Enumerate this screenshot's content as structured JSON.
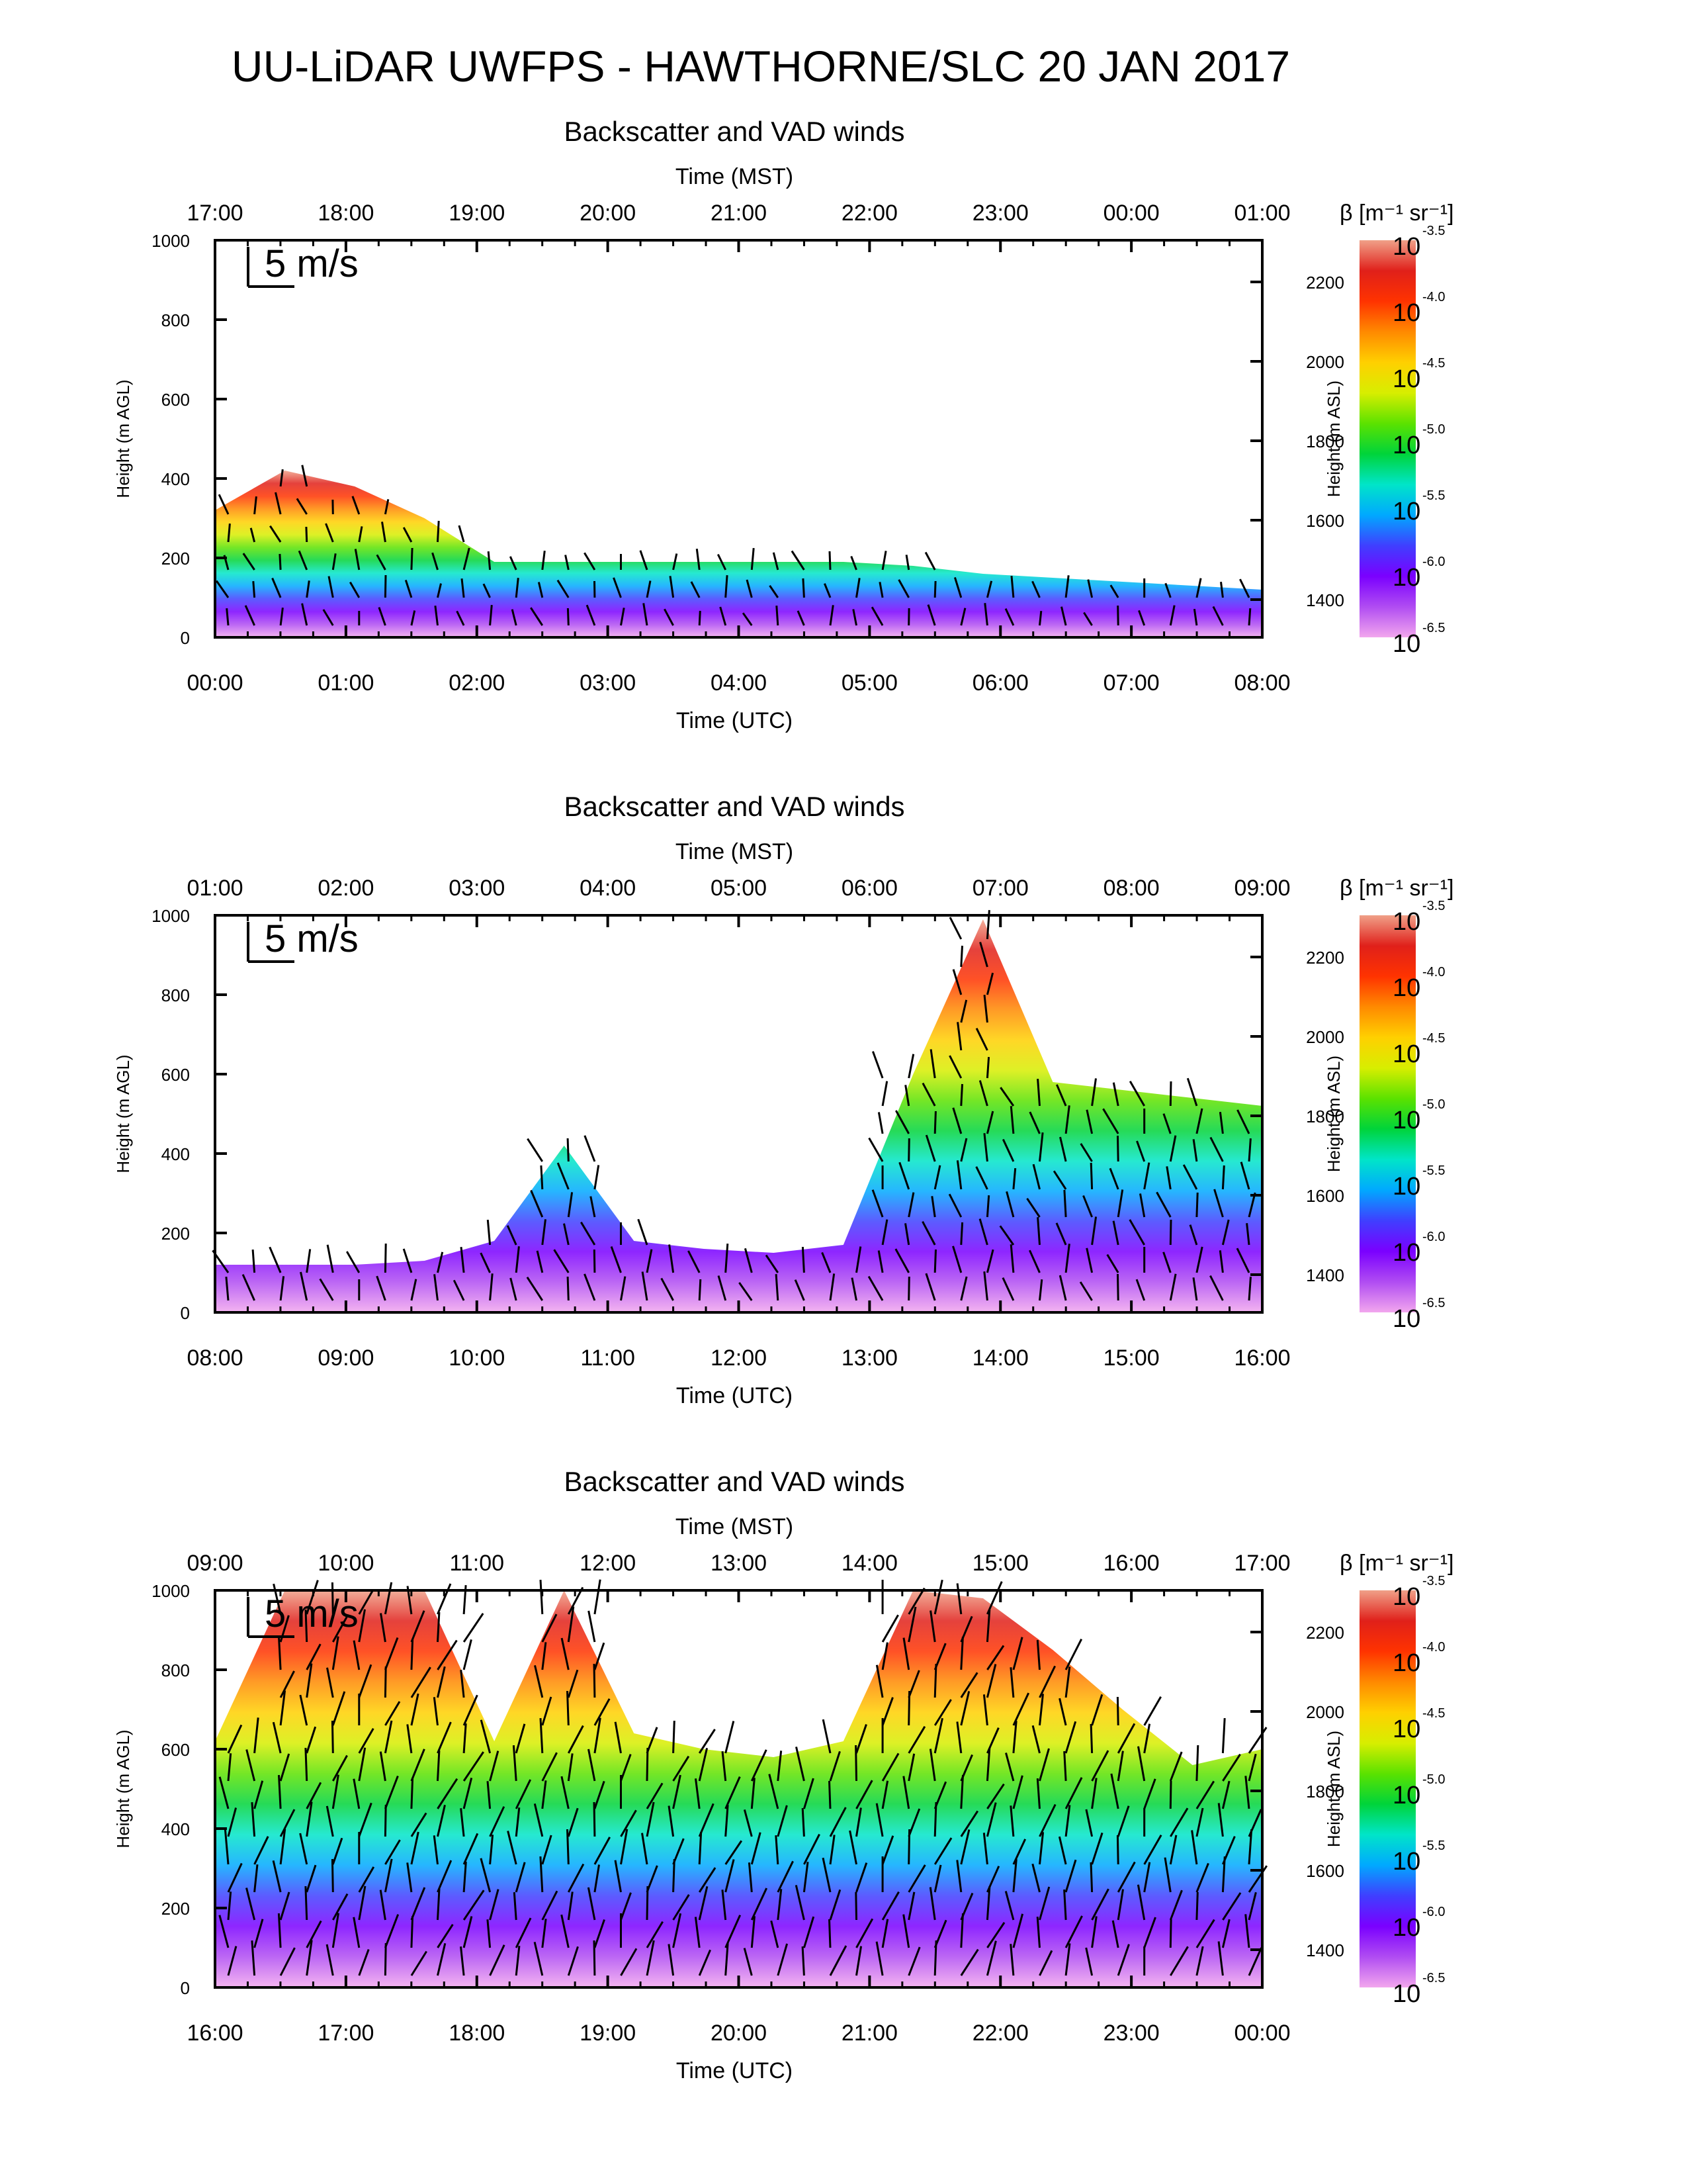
{
  "title": "UU-LiDAR UWFPS - HAWTHORNE/SLC 20 JAN 2017",
  "colors": {
    "colorbar_stops": [
      "#f2a7ee",
      "#b04cf2",
      "#7a00ff",
      "#3f3fff",
      "#00a9ff",
      "#00e5c8",
      "#00d43a",
      "#5be200",
      "#d7ee00",
      "#ffd000",
      "#ff8a00",
      "#ff3300",
      "#e0201a",
      "#f0a088"
    ],
    "arrow": "#000000"
  },
  "chart_data": [
    {
      "type": "heatmap",
      "title": "Backscatter and VAD winds",
      "top_axis_label": "Time (MST)",
      "top_ticks": [
        "17:00",
        "18:00",
        "19:00",
        "20:00",
        "21:00",
        "22:00",
        "23:00",
        "00:00",
        "01:00"
      ],
      "bottom_axis_label": "Time (UTC)",
      "bottom_ticks": [
        "00:00",
        "01:00",
        "02:00",
        "03:00",
        "04:00",
        "05:00",
        "06:00",
        "07:00",
        "08:00"
      ],
      "ylabel": "Height (m AGL)",
      "yticks": [
        "0",
        "200",
        "400",
        "600",
        "800",
        "1000"
      ],
      "ylim": [
        0,
        1000
      ],
      "y2label": "Height (m ASL)",
      "y2ticks": [
        "1400",
        "1600",
        "1800",
        "2000",
        "2200"
      ],
      "colorbar_label": "β [m⁻¹ sr⁻¹]",
      "colorbar_ticks": [
        "-3.5",
        "-4.0",
        "-4.5",
        "-5.0",
        "-5.5",
        "-6.0",
        "-6.5"
      ],
      "wind_scale_label": "5 m/s",
      "aerosol_top_m": [
        320,
        420,
        380,
        300,
        190,
        190,
        190,
        190,
        190,
        190,
        180,
        160,
        150,
        140,
        130,
        120
      ]
    },
    {
      "type": "heatmap",
      "title": "Backscatter and VAD winds",
      "top_axis_label": "Time (MST)",
      "top_ticks": [
        "01:00",
        "02:00",
        "03:00",
        "04:00",
        "05:00",
        "06:00",
        "07:00",
        "08:00",
        "09:00"
      ],
      "bottom_axis_label": "Time (UTC)",
      "bottom_ticks": [
        "08:00",
        "09:00",
        "10:00",
        "11:00",
        "12:00",
        "13:00",
        "14:00",
        "15:00",
        "16:00"
      ],
      "ylabel": "Height (m AGL)",
      "yticks": [
        "0",
        "200",
        "400",
        "600",
        "800",
        "1000"
      ],
      "ylim": [
        0,
        1000
      ],
      "y2label": "Height (m ASL)",
      "y2ticks": [
        "1400",
        "1600",
        "1800",
        "2000",
        "2200"
      ],
      "colorbar_label": "β [m⁻¹ sr⁻¹]",
      "colorbar_ticks": [
        "-3.5",
        "-4.0",
        "-4.5",
        "-5.0",
        "-5.5",
        "-6.0",
        "-6.5"
      ],
      "wind_scale_label": "5 m/s",
      "aerosol_top_m": [
        120,
        120,
        120,
        130,
        180,
        420,
        180,
        160,
        150,
        170,
        600,
        990,
        580,
        560,
        540,
        520
      ]
    },
    {
      "type": "heatmap",
      "title": "Backscatter and VAD winds",
      "top_axis_label": "Time (MST)",
      "top_ticks": [
        "09:00",
        "10:00",
        "11:00",
        "12:00",
        "13:00",
        "14:00",
        "15:00",
        "16:00",
        "17:00"
      ],
      "bottom_axis_label": "Time (UTC)",
      "bottom_ticks": [
        "16:00",
        "17:00",
        "18:00",
        "19:00",
        "20:00",
        "21:00",
        "22:00",
        "23:00",
        "00:00"
      ],
      "ylabel": "Height (m AGL)",
      "yticks": [
        "0",
        "200",
        "400",
        "600",
        "800",
        "1000"
      ],
      "ylim": [
        0,
        1000
      ],
      "y2label": "Height (m ASL)",
      "y2ticks": [
        "1400",
        "1600",
        "1800",
        "2000",
        "2200"
      ],
      "colorbar_label": "β [m⁻¹ sr⁻¹]",
      "colorbar_ticks": [
        "-3.5",
        "-4.0",
        "-4.5",
        "-5.0",
        "-5.5",
        "-6.0",
        "-6.5"
      ],
      "wind_scale_label": "5 m/s",
      "aerosol_top_m": [
        620,
        1000,
        1000,
        1000,
        620,
        1000,
        640,
        600,
        580,
        620,
        1000,
        980,
        850,
        700,
        560,
        600
      ]
    }
  ]
}
